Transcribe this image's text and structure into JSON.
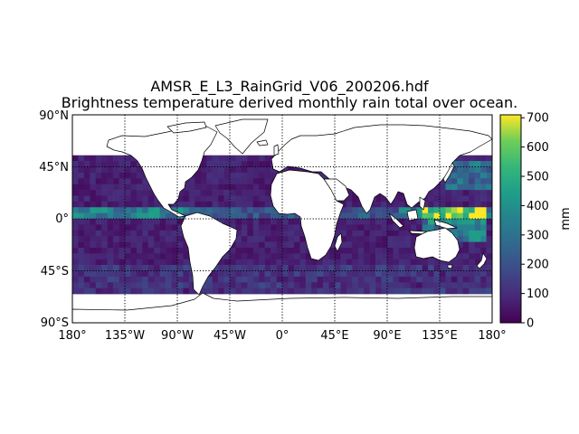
{
  "figure": {
    "title_line1": "AMSR_E_L3_RainGrid_V06_200206.hdf",
    "title_line2": "Brightness temperature derived monthly rain total over ocean."
  },
  "map": {
    "projection": "equirectangular",
    "lon_range": [
      -180,
      180
    ],
    "lat_range": [
      -90,
      90
    ],
    "gridlines": "dotted, every 45 degrees",
    "x_tick_labels": [
      "180°",
      "135°W",
      "90°W",
      "45°W",
      "0°",
      "45°E",
      "90°E",
      "135°E",
      "180°"
    ],
    "y_tick_labels": [
      "90°N",
      "45°N",
      "0°",
      "45°S",
      "90°S"
    ],
    "colormap": "viridis",
    "land_color": "#ffffff",
    "coastline_color": "#000000"
  },
  "colorbar": {
    "label": "mm",
    "range": [
      0,
      710
    ],
    "tick_labels": [
      "0",
      "100",
      "200",
      "300",
      "400",
      "500",
      "600",
      "700"
    ]
  }
}
